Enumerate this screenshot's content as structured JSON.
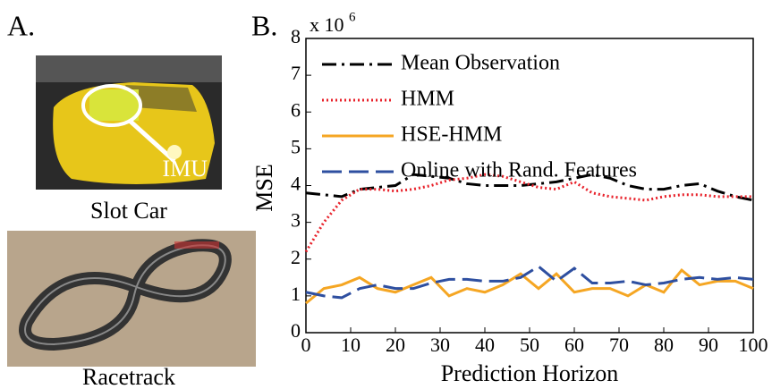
{
  "panel_a": {
    "label": "A.",
    "photo_annotation": "IMU",
    "caption_top": "Slot Car",
    "caption_bottom": "Racetrack"
  },
  "chart_data": {
    "type": "line",
    "panel_label": "B.",
    "y_scale": {
      "base": "x 10",
      "exponent": "6"
    },
    "xlabel": "Prediction Horizon",
    "ylabel": "MSE",
    "x": [
      0,
      4,
      8,
      12,
      16,
      20,
      24,
      28,
      32,
      36,
      40,
      44,
      48,
      52,
      56,
      60,
      64,
      68,
      72,
      76,
      80,
      84,
      88,
      92,
      96,
      100
    ],
    "xlim": [
      0,
      100
    ],
    "xticks": [
      0,
      10,
      20,
      30,
      40,
      50,
      60,
      70,
      80,
      90,
      100
    ],
    "ylim": [
      0,
      8
    ],
    "yticks": [
      0,
      1,
      2,
      3,
      4,
      5,
      6,
      7,
      8
    ],
    "legend": "upper-left",
    "series": [
      {
        "name": "Mean Observation",
        "color": "#000000",
        "dash": "dashdot",
        "values": [
          3.8,
          3.75,
          3.7,
          3.9,
          3.95,
          4.0,
          4.3,
          4.25,
          4.2,
          4.05,
          4.0,
          4.0,
          4.0,
          4.05,
          4.1,
          4.2,
          4.3,
          4.2,
          4.0,
          3.9,
          3.9,
          4.0,
          4.05,
          3.85,
          3.7,
          3.6
        ]
      },
      {
        "name": "HMM",
        "color": "#e8212a",
        "dash": "dotted",
        "values": [
          2.2,
          3.0,
          3.6,
          3.9,
          3.9,
          3.85,
          3.9,
          4.0,
          4.15,
          4.2,
          4.3,
          4.25,
          4.1,
          3.95,
          3.9,
          4.1,
          3.8,
          3.7,
          3.65,
          3.6,
          3.7,
          3.75,
          3.75,
          3.7,
          3.7,
          3.7
        ]
      },
      {
        "name": "HSE-HMM",
        "color": "#f5a623",
        "dash": "solid",
        "values": [
          0.8,
          1.2,
          1.3,
          1.5,
          1.2,
          1.1,
          1.3,
          1.5,
          1.0,
          1.2,
          1.1,
          1.3,
          1.6,
          1.2,
          1.6,
          1.1,
          1.2,
          1.2,
          1.0,
          1.3,
          1.1,
          1.7,
          1.3,
          1.4,
          1.4,
          1.2
        ]
      },
      {
        "name": "Online with Rand. Features",
        "color": "#2e4fa0",
        "dash": "dashed",
        "values": [
          1.1,
          1.0,
          0.95,
          1.2,
          1.3,
          1.2,
          1.2,
          1.35,
          1.45,
          1.45,
          1.4,
          1.4,
          1.5,
          1.8,
          1.4,
          1.75,
          1.35,
          1.35,
          1.4,
          1.3,
          1.35,
          1.45,
          1.5,
          1.45,
          1.5,
          1.45
        ]
      }
    ]
  }
}
